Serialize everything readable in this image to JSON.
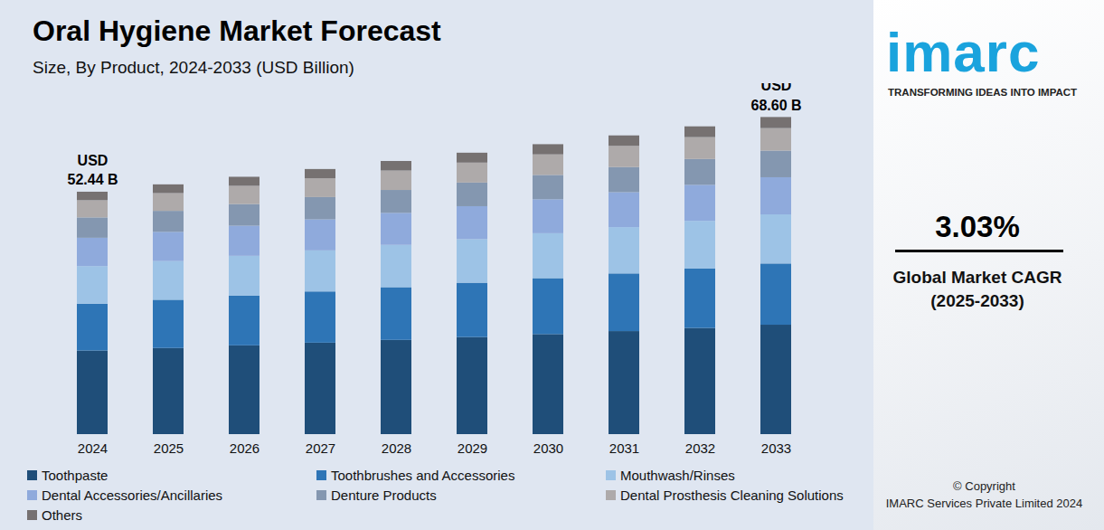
{
  "chart_data": {
    "type": "bar",
    "stacked": true,
    "title": "Oral Hygiene Market Forecast",
    "subtitle": "Size, By Product, 2024-2033 (USD Billion)",
    "categories": [
      "2024",
      "2025",
      "2026",
      "2027",
      "2028",
      "2029",
      "2030",
      "2031",
      "2032",
      "2033"
    ],
    "series": [
      {
        "name": "Toothpaste",
        "color": "#1f4e79",
        "values": [
          18.09,
          18.64,
          19.21,
          19.79,
          20.39,
          21.0,
          21.64,
          22.29,
          22.97,
          23.67
        ]
      },
      {
        "name": "Toothbrushes and Accessories",
        "color": "#2e75b6",
        "values": [
          10.12,
          10.43,
          10.74,
          11.07,
          11.4,
          11.75,
          12.1,
          12.47,
          12.85,
          13.24
        ]
      },
      {
        "name": "Mouthwash/Rinses",
        "color": "#9dc3e6",
        "values": [
          8.13,
          8.37,
          8.63,
          8.89,
          9.16,
          9.44,
          9.72,
          10.02,
          10.32,
          10.63
        ]
      },
      {
        "name": "Dental Accessories/Ancillaries",
        "color": "#8faadc",
        "values": [
          6.14,
          6.32,
          6.51,
          6.71,
          6.91,
          7.12,
          7.34,
          7.56,
          7.79,
          8.03
        ]
      },
      {
        "name": "Denture Products",
        "color": "#8497b0",
        "values": [
          4.4,
          4.54,
          4.68,
          4.82,
          4.96,
          5.11,
          5.27,
          5.43,
          5.59,
          5.76
        ]
      },
      {
        "name": "Dental Prosthesis Cleaning Solutions",
        "color": "#aeaaaa",
        "values": [
          3.72,
          3.84,
          3.95,
          4.07,
          4.2,
          4.32,
          4.45,
          4.59,
          4.73,
          4.87
        ]
      },
      {
        "name": "Others",
        "color": "#767171",
        "values": [
          1.84,
          1.89,
          1.95,
          2.0,
          2.07,
          2.14,
          2.2,
          2.26,
          2.33,
          2.4
        ]
      }
    ],
    "ylim": [
      0,
      72
    ],
    "yticks": [],
    "tick_labels": "x",
    "grid": false,
    "legend": "bottom",
    "annotations": [
      {
        "x": "2024",
        "y": 52.44,
        "lines": [
          "USD",
          "52.44 B"
        ]
      },
      {
        "x": "2033",
        "y": 68.6,
        "lines": [
          "USD",
          "68.60 B"
        ]
      }
    ]
  },
  "branding": {
    "logo": "imarc",
    "tagline": "TRANSFORMING IDEAS INTO IMPACT",
    "cagr": "3.03%",
    "cagr_label": [
      "Global Market CAGR",
      "(2025-2033)"
    ],
    "copyright": [
      "© Copyright",
      "IMARC Services Private Limited 2024"
    ]
  }
}
